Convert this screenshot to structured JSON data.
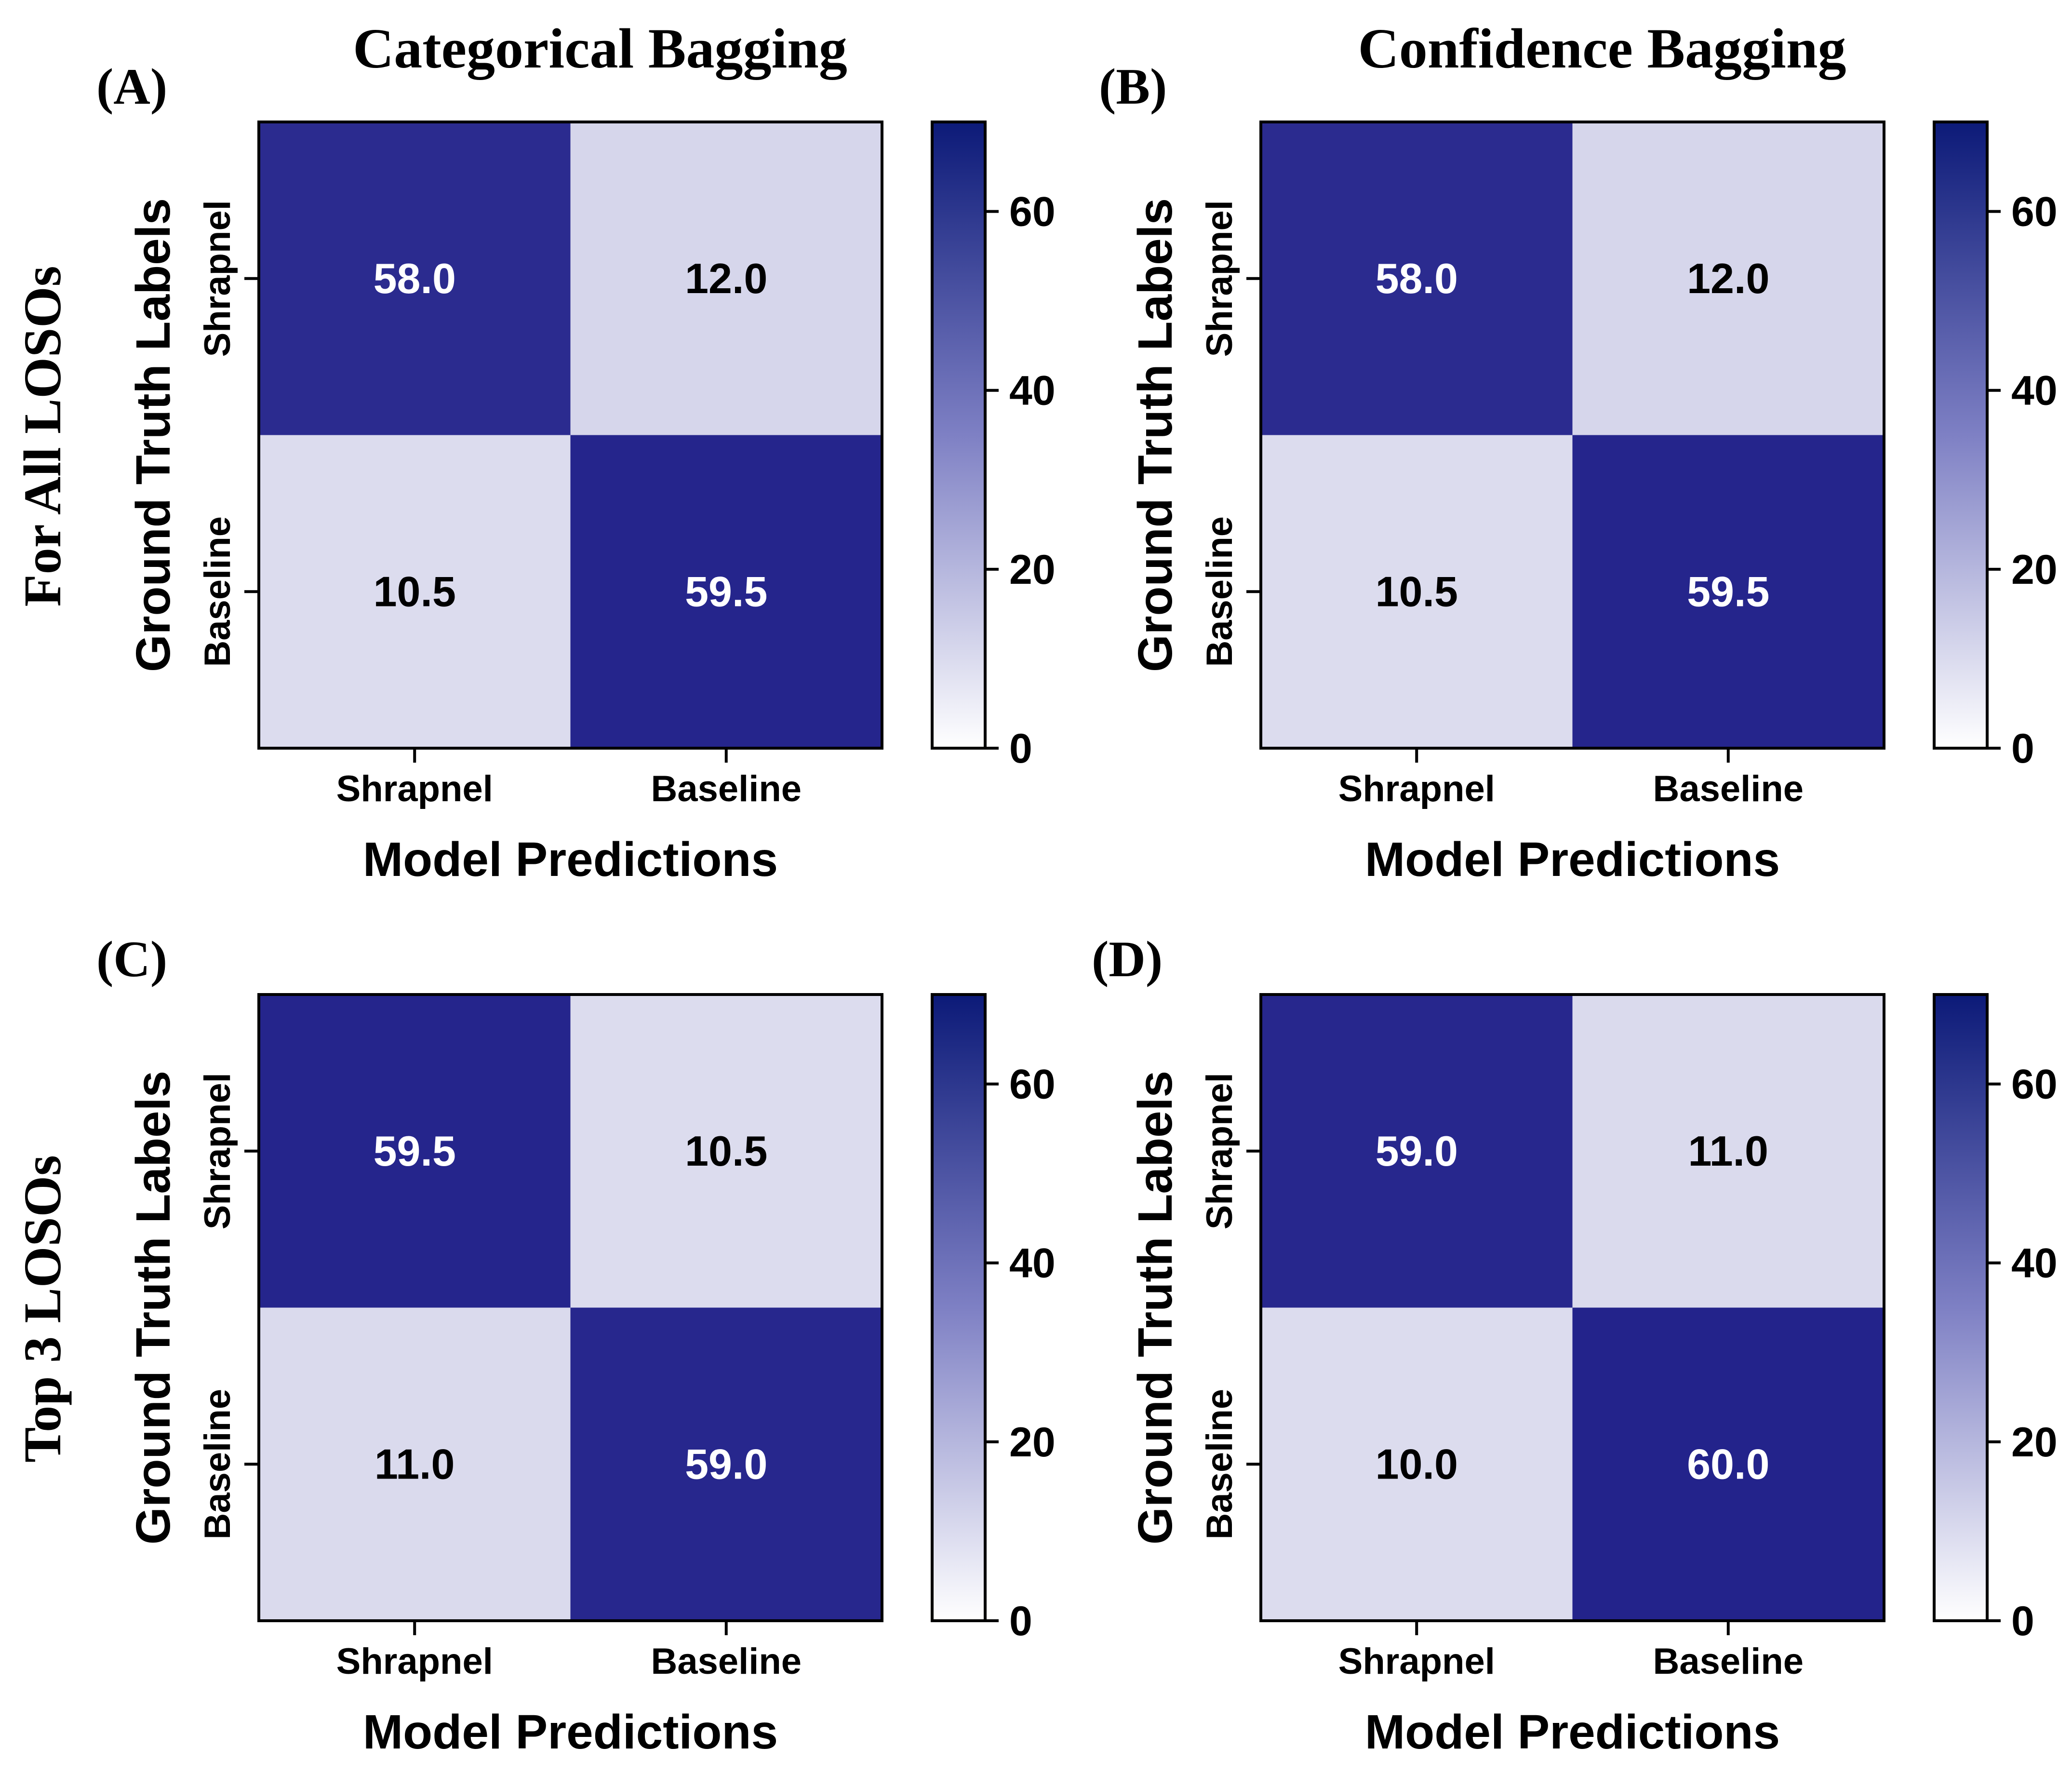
{
  "figure": {
    "column_titles": [
      "Categorical Bagging",
      "Confidence Bagging"
    ],
    "row_titles": [
      "For All LOSOs",
      "Top 3 LOSOs"
    ]
  },
  "colors": {
    "high": "#25258c",
    "low": "#dcdcee",
    "gradient_top": "#0c1a78",
    "gradient_mid": "#7e80c4",
    "gradient_bottom": "#ffffff",
    "text_on_dark": "#ffffff",
    "text_on_light": "#000000"
  },
  "chart_data": [
    {
      "type": "heatmap",
      "panel_label": "(A)",
      "title": "Categorical Bagging",
      "xlabel": "Model Predictions",
      "ylabel": "Ground Truth Labels",
      "x_categories": [
        "Shrapnel",
        "Baseline"
      ],
      "y_categories": [
        "Shrapnel",
        "Baseline"
      ],
      "values": [
        [
          58.0,
          12.0
        ],
        [
          10.5,
          59.5
        ]
      ],
      "cell_labels": [
        [
          "58.0",
          "12.0"
        ],
        [
          "10.5",
          "59.5"
        ]
      ],
      "colorbar": {
        "range": [
          0,
          70
        ],
        "ticks": [
          0,
          20,
          40,
          60
        ],
        "tick_labels": [
          "0",
          "20",
          "40",
          "60"
        ]
      }
    },
    {
      "type": "heatmap",
      "panel_label": "(B)",
      "title": "Confidence Bagging",
      "xlabel": "Model Predictions",
      "ylabel": "Ground Truth Labels",
      "x_categories": [
        "Shrapnel",
        "Baseline"
      ],
      "y_categories": [
        "Shrapnel",
        "Baseline"
      ],
      "values": [
        [
          58.0,
          12.0
        ],
        [
          10.5,
          59.5
        ]
      ],
      "cell_labels": [
        [
          "58.0",
          "12.0"
        ],
        [
          "10.5",
          "59.5"
        ]
      ],
      "colorbar": {
        "range": [
          0,
          70
        ],
        "ticks": [
          0,
          20,
          40,
          60
        ],
        "tick_labels": [
          "0",
          "20",
          "40",
          "60"
        ]
      }
    },
    {
      "type": "heatmap",
      "panel_label": "(C)",
      "title": "",
      "xlabel": "Model Predictions",
      "ylabel": "Ground Truth Labels",
      "x_categories": [
        "Shrapnel",
        "Baseline"
      ],
      "y_categories": [
        "Shrapnel",
        "Baseline"
      ],
      "values": [
        [
          59.5,
          10.5
        ],
        [
          11.0,
          59.0
        ]
      ],
      "cell_labels": [
        [
          "59.5",
          "10.5"
        ],
        [
          "11.0",
          "59.0"
        ]
      ],
      "colorbar": {
        "range": [
          0,
          70
        ],
        "ticks": [
          0,
          20,
          40,
          60
        ],
        "tick_labels": [
          "0",
          "20",
          "40",
          "60"
        ]
      }
    },
    {
      "type": "heatmap",
      "panel_label": "(D)",
      "title": "",
      "xlabel": "Model Predictions",
      "ylabel": "Ground Truth Labels",
      "x_categories": [
        "Shrapnel",
        "Baseline"
      ],
      "y_categories": [
        "Shrapnel",
        "Baseline"
      ],
      "values": [
        [
          59.0,
          11.0
        ],
        [
          10.0,
          60.0
        ]
      ],
      "cell_labels": [
        [
          "59.0",
          "11.0"
        ],
        [
          "10.0",
          "60.0"
        ]
      ],
      "colorbar": {
        "range": [
          0,
          70
        ],
        "ticks": [
          0,
          20,
          40,
          60
        ],
        "tick_labels": [
          "0",
          "20",
          "40",
          "60"
        ]
      }
    }
  ]
}
